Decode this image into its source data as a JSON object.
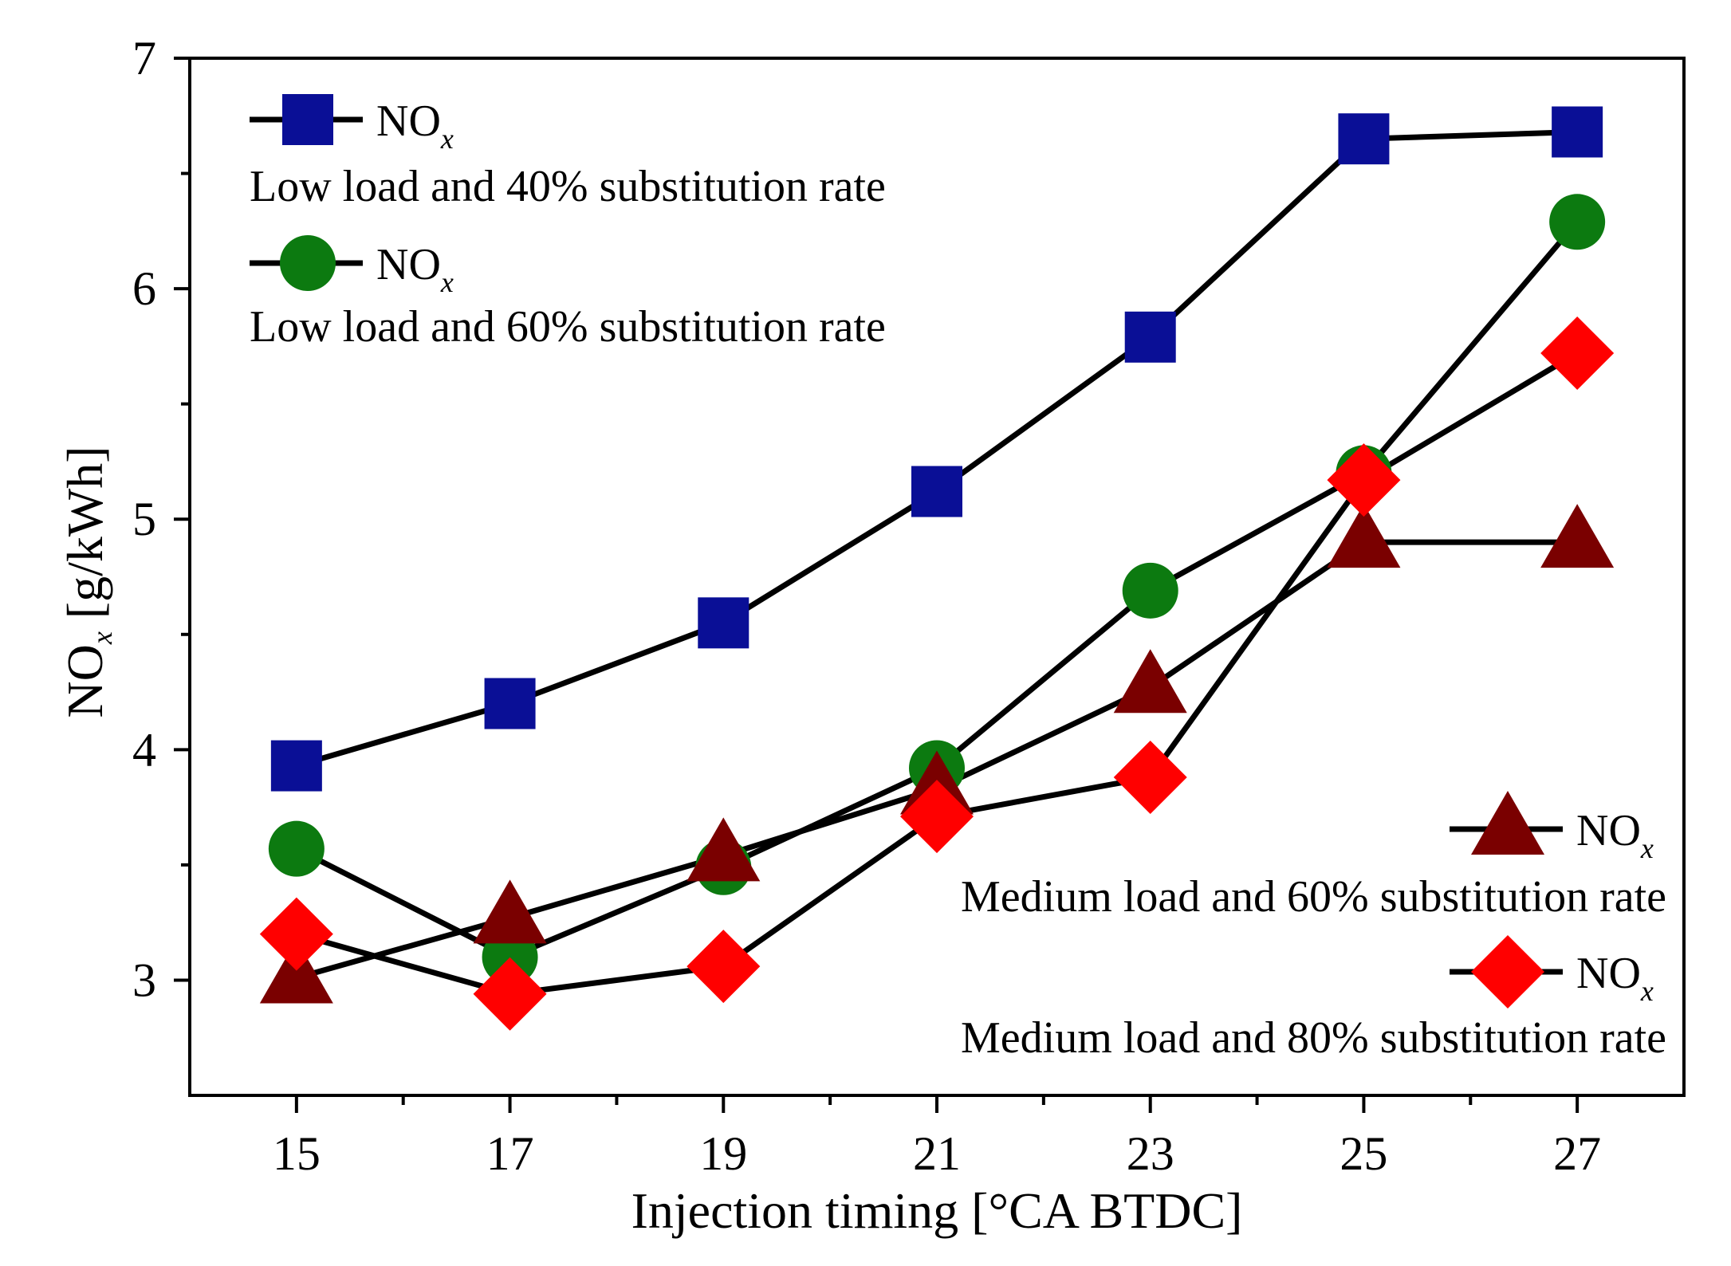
{
  "chart_data": {
    "type": "line",
    "title": "",
    "xlabel": "Injection timing [°CA BTDC]",
    "ylabel_main": "NO",
    "ylabel_sub": "x",
    "ylabel_unit": " [g/kWh]",
    "x": [
      15,
      17,
      19,
      21,
      23,
      25,
      27
    ],
    "xticks": [
      "15",
      "17",
      "19",
      "21",
      "23",
      "25",
      "27"
    ],
    "yticks": [
      "3",
      "4",
      "5",
      "6",
      "7"
    ],
    "xlim": [
      14,
      28
    ],
    "ylim": [
      2.5,
      7
    ],
    "grid": false,
    "legend_position": "top-left and bottom-right",
    "series": [
      {
        "name": "Low load and 40% substitution rate",
        "marker": "square",
        "color": "#0a0f96",
        "legend_title": "NO",
        "legend_sub": "x",
        "values": [
          3.93,
          4.2,
          4.55,
          5.12,
          5.79,
          6.65,
          6.68
        ]
      },
      {
        "name": "Low load and 60% substitution rate",
        "marker": "circle",
        "color": "#0c7a10",
        "legend_title": "NO",
        "legend_sub": "x",
        "values": [
          3.57,
          3.1,
          3.49,
          3.92,
          4.69,
          5.2,
          6.29
        ]
      },
      {
        "name": "Medium load and 60% substitution rate",
        "marker": "triangle",
        "color": "#7a0000",
        "legend_title": "NO",
        "legend_sub": "x",
        "values": [
          3.01,
          3.27,
          3.54,
          3.83,
          4.27,
          4.9,
          4.9
        ]
      },
      {
        "name": "Medium load and 80% substitution rate",
        "marker": "diamond",
        "color": "#ff0000",
        "legend_title": "NO",
        "legend_sub": "x",
        "values": [
          3.2,
          2.94,
          3.06,
          3.71,
          3.88,
          5.17,
          5.72
        ]
      }
    ]
  }
}
